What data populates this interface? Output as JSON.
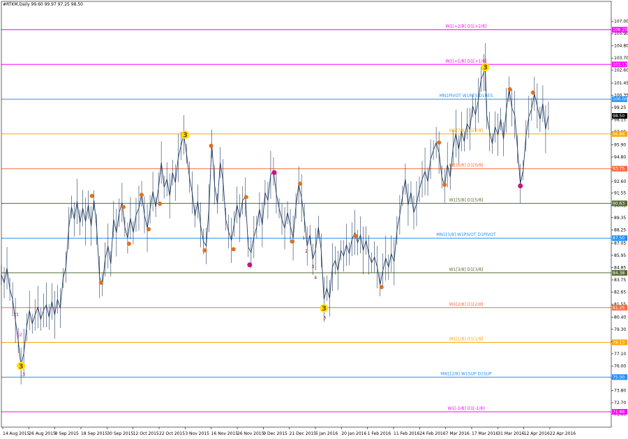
{
  "header": {
    "text": "#RTKM,Daily  99.60 99.97 97.25 98.50"
  },
  "chart_data": {
    "type": "line",
    "symbol": "#RTKM",
    "timeframe": "Daily",
    "ohlc": {
      "open": 99.6,
      "high": 99.97,
      "low": 97.25,
      "close": 98.5
    },
    "current_price_label": "98.50",
    "ylim": [
      70.5,
      108.8
    ],
    "y_ticks": [
      "107.00",
      "105.90",
      "104.80",
      "103.70",
      "102.60",
      "101.45",
      "100.35",
      "99.25",
      "98.15",
      "97.05",
      "95.90",
      "94.80",
      "93.70",
      "92.60",
      "91.55",
      "90.45",
      "89.35",
      "88.25",
      "87.05",
      "85.95",
      "84.85",
      "83.75",
      "82.65",
      "81.55",
      "80.40",
      "79.30",
      "78.20",
      "77.10",
      "76.00",
      "74.90",
      "73.80",
      "72.70",
      "71.65"
    ],
    "x_ticks": [
      "14 Aug 2015",
      "26 Aug 2015",
      "8 Sep 2015",
      "18 Sep 2015",
      "30 Sep 2015",
      "12 Oct 2015",
      "22 Oct 2015",
      "3 Nov 2015",
      "16 Nov 2015",
      "26 Nov 2015",
      "9 Dec 2015",
      "21 Dec 2015",
      "5 Jan 2016",
      "20 Jan 2016",
      "1 Feb 2016",
      "11 Feb 2016",
      "24 Feb 2016",
      "7 Mar 2016",
      "17 Mar 2016",
      "31 Mar 2016",
      "12 Apr 2016",
      "22 Apr 2016"
    ],
    "levels": [
      {
        "label": "W1[+2/8] D1[+2/8]",
        "value": 106.25,
        "tag": "106.25",
        "color": "#ff00ff"
      },
      {
        "label": "W1[+1/8] D1[+1/8]",
        "value": 103.13,
        "tag": "103.13",
        "color": "#ff00ff"
      },
      {
        "label": "MN1PIVOT W1RES D1RES",
        "value": 100.0,
        "tag": "100.00",
        "color": "#1e90ff"
      },
      {
        "label": "W1[7/8] D1[7/8]",
        "value": 96.88,
        "tag": "96.88",
        "color": "#ffa500"
      },
      {
        "label": "W1[6/8] D1[6/8]",
        "value": 93.75,
        "tag": "93.75",
        "color": "#ff6a3a"
      },
      {
        "label": "W1[5/8] D1[5/8]",
        "value": 90.63,
        "tag": "90.63",
        "color": "#556b2f"
      },
      {
        "label": "MN1[3/8] W1PIVOT D1PIVOT",
        "value": 87.5,
        "tag": "87.50",
        "color": "#1e90ff"
      },
      {
        "label": "W1[3/8] D1[3/8]",
        "value": 84.38,
        "tag": "84.38",
        "color": "#556b2f"
      },
      {
        "label": "W1[2/8] D1[2/8]",
        "value": 81.25,
        "tag": "81.25",
        "color": "#ff6a3a"
      },
      {
        "label": "W1[1/8] D1[1/8]",
        "value": 78.13,
        "tag": "78.13",
        "color": "#ffa500"
      },
      {
        "label": "MN1[2/8] W1SUP D1SUP",
        "value": 75.0,
        "tag": "75.00",
        "color": "#1e90ff"
      },
      {
        "label": "W1[-1/8] D1[-1/8]",
        "value": 71.88,
        "tag": "71.88",
        "color": "#ff00ff"
      }
    ],
    "series": [
      {
        "name": "#RTKM",
        "values": [
          [
            0,
            84.2
          ],
          [
            4,
            83.5
          ],
          [
            8,
            84.8
          ],
          [
            12,
            82.9
          ],
          [
            16,
            82.0
          ],
          [
            20,
            80.1
          ],
          [
            24,
            78.3
          ],
          [
            28,
            76.0
          ],
          [
            32,
            77.2
          ],
          [
            36,
            79.5
          ],
          [
            40,
            81.0
          ],
          [
            44,
            79.8
          ],
          [
            48,
            80.6
          ],
          [
            52,
            81.3
          ],
          [
            56,
            80.2
          ],
          [
            60,
            81.0
          ],
          [
            64,
            81.5
          ],
          [
            68,
            80.4
          ],
          [
            72,
            81.8
          ],
          [
            76,
            80.6
          ],
          [
            80,
            82.0
          ],
          [
            84,
            81.2
          ],
          [
            88,
            83.9
          ],
          [
            92,
            84.9
          ],
          [
            96,
            88.4
          ],
          [
            100,
            90.3
          ],
          [
            104,
            89.2
          ],
          [
            108,
            90.8
          ],
          [
            112,
            88.9
          ],
          [
            116,
            90.2
          ],
          [
            120,
            89.0
          ],
          [
            124,
            90.5
          ],
          [
            128,
            88.6
          ],
          [
            132,
            90.9
          ],
          [
            136,
            88.3
          ],
          [
            140,
            84.0
          ],
          [
            144,
            83.3
          ],
          [
            148,
            85.6
          ],
          [
            152,
            86.8
          ],
          [
            156,
            85.2
          ],
          [
            160,
            89.2
          ],
          [
            164,
            88.0
          ],
          [
            168,
            89.8
          ],
          [
            172,
            90.7
          ],
          [
            176,
            88.5
          ],
          [
            180,
            87.5
          ],
          [
            184,
            89.3
          ],
          [
            188,
            88.0
          ],
          [
            192,
            89.6
          ],
          [
            196,
            90.2
          ],
          [
            200,
            91.5
          ],
          [
            204,
            89.6
          ],
          [
            208,
            88.4
          ],
          [
            212,
            90.1
          ],
          [
            216,
            91.7
          ],
          [
            220,
            90.3
          ],
          [
            224,
            92.0
          ],
          [
            228,
            94.3
          ],
          [
            232,
            92.1
          ],
          [
            236,
            92.8
          ],
          [
            240,
            91.3
          ],
          [
            244,
            93.4
          ],
          [
            248,
            92.5
          ],
          [
            252,
            94.7
          ],
          [
            256,
            95.8
          ],
          [
            260,
            96.8
          ],
          [
            264,
            95.1
          ],
          [
            268,
            93.0
          ],
          [
            272,
            91.6
          ],
          [
            276,
            89.5
          ],
          [
            280,
            90.8
          ],
          [
            284,
            88.7
          ],
          [
            288,
            87.2
          ],
          [
            292,
            86.8
          ],
          [
            296,
            90.2
          ],
          [
            300,
            96.0
          ],
          [
            304,
            92.3
          ],
          [
            308,
            90.6
          ],
          [
            312,
            94.3
          ],
          [
            316,
            92.7
          ],
          [
            320,
            89.2
          ],
          [
            324,
            88.1
          ],
          [
            328,
            87.3
          ],
          [
            332,
            88.8
          ],
          [
            336,
            90.5
          ],
          [
            340,
            89.3
          ],
          [
            344,
            90.9
          ],
          [
            348,
            91.2
          ],
          [
            352,
            86.7
          ],
          [
            356,
            86.2
          ],
          [
            360,
            87.6
          ],
          [
            364,
            88.5
          ],
          [
            368,
            90.1
          ],
          [
            372,
            88.7
          ],
          [
            376,
            91.6
          ],
          [
            380,
            90.9
          ],
          [
            384,
            93.2
          ],
          [
            388,
            93.5
          ],
          [
            392,
            91.5
          ],
          [
            396,
            90.2
          ],
          [
            400,
            89.2
          ],
          [
            404,
            88.4
          ],
          [
            408,
            89.8
          ],
          [
            412,
            88.6
          ],
          [
            416,
            87.5
          ],
          [
            420,
            90.4
          ],
          [
            424,
            92.3
          ],
          [
            428,
            91.1
          ],
          [
            432,
            89.3
          ],
          [
            436,
            86.8
          ],
          [
            440,
            87.8
          ],
          [
            444,
            85.6
          ],
          [
            448,
            86.5
          ],
          [
            452,
            88.5
          ],
          [
            456,
            86.4
          ],
          [
            460,
            82.0
          ],
          [
            464,
            83.0
          ],
          [
            468,
            82.1
          ],
          [
            472,
            84.9
          ],
          [
            476,
            85.5
          ],
          [
            480,
            84.6
          ],
          [
            484,
            86.4
          ],
          [
            488,
            85.9
          ],
          [
            492,
            86.9
          ],
          [
            496,
            86.1
          ],
          [
            500,
            87.4
          ],
          [
            504,
            88.0
          ],
          [
            508,
            87.1
          ],
          [
            512,
            87.8
          ],
          [
            516,
            86.4
          ],
          [
            520,
            87.3
          ],
          [
            524,
            86.0
          ],
          [
            528,
            85.3
          ],
          [
            532,
            85.8
          ],
          [
            536,
            84.9
          ],
          [
            540,
            83.3
          ],
          [
            544,
            84.6
          ],
          [
            548,
            85.7
          ],
          [
            552,
            84.9
          ],
          [
            556,
            86.1
          ],
          [
            560,
            85.4
          ],
          [
            564,
            88.2
          ],
          [
            568,
            89.6
          ],
          [
            572,
            91.3
          ],
          [
            576,
            92.8
          ],
          [
            580,
            90.5
          ],
          [
            584,
            91.6
          ],
          [
            588,
            89.8
          ],
          [
            592,
            90.6
          ],
          [
            596,
            91.9
          ],
          [
            600,
            92.8
          ],
          [
            604,
            93.5
          ],
          [
            608,
            92.6
          ],
          [
            612,
            94.6
          ],
          [
            616,
            95.4
          ],
          [
            620,
            96.1
          ],
          [
            624,
            95.2
          ],
          [
            628,
            93.0
          ],
          [
            632,
            92.2
          ],
          [
            636,
            94.1
          ],
          [
            640,
            93.0
          ],
          [
            644,
            95.6
          ],
          [
            648,
            96.9
          ],
          [
            652,
            95.5
          ],
          [
            656,
            97.1
          ],
          [
            660,
            96.2
          ],
          [
            664,
            97.8
          ],
          [
            668,
            97.3
          ],
          [
            672,
            99.4
          ],
          [
            676,
            98.6
          ],
          [
            680,
            99.9
          ],
          [
            684,
            101.8
          ],
          [
            688,
            102.4
          ],
          [
            690,
            102.9
          ],
          [
            692,
            98.6
          ],
          [
            696,
            97.1
          ],
          [
            700,
            96.0
          ],
          [
            704,
            97.5
          ],
          [
            708,
            96.8
          ],
          [
            712,
            98.2
          ],
          [
            716,
            96.4
          ],
          [
            720,
            99.0
          ],
          [
            724,
            100.9
          ],
          [
            728,
            99.2
          ],
          [
            732,
            98.6
          ],
          [
            736,
            95.5
          ],
          [
            740,
            92.4
          ],
          [
            744,
            93.6
          ],
          [
            748,
            96.7
          ],
          [
            752,
            98.4
          ],
          [
            756,
            99.1
          ],
          [
            760,
            100.5
          ],
          [
            764,
            99.4
          ],
          [
            768,
            98.2
          ],
          [
            772,
            99.6
          ],
          [
            776,
            97.3
          ],
          [
            780,
            98.5
          ]
        ]
      }
    ],
    "markers": [
      {
        "label": "3",
        "kind": "big-yellow",
        "x": 28,
        "y": 76.0
      },
      {
        "label": "3",
        "kind": "big-yellow",
        "x": 262,
        "y": 96.8
      },
      {
        "label": "3",
        "kind": "big-yellow",
        "x": 460,
        "y": 81.2
      },
      {
        "label": "3",
        "kind": "big-yellow",
        "x": 690,
        "y": 102.9
      },
      {
        "label": "",
        "kind": "orange",
        "x": 129,
        "y": 91.3
      },
      {
        "label": "",
        "kind": "orange",
        "x": 142,
        "y": 83.5
      },
      {
        "label": "",
        "kind": "orange",
        "x": 174,
        "y": 90.3
      },
      {
        "label": "",
        "kind": "orange",
        "x": 182,
        "y": 87.0
      },
      {
        "label": "",
        "kind": "orange",
        "x": 200,
        "y": 91.4
      },
      {
        "label": "",
        "kind": "orange",
        "x": 210,
        "y": 88.3
      },
      {
        "label": "",
        "kind": "orange",
        "x": 226,
        "y": 90.6
      },
      {
        "label": "",
        "kind": "orange",
        "x": 290,
        "y": 86.4
      },
      {
        "label": "",
        "kind": "orange",
        "x": 299,
        "y": 95.8
      },
      {
        "label": "",
        "kind": "orange",
        "x": 331,
        "y": 86.5
      },
      {
        "label": "",
        "kind": "orange",
        "x": 349,
        "y": 91.2
      },
      {
        "label": "",
        "kind": "orange",
        "x": 415,
        "y": 87.2
      },
      {
        "label": "",
        "kind": "orange",
        "x": 426,
        "y": 92.4
      },
      {
        "label": "",
        "kind": "orange",
        "x": 505,
        "y": 87.7
      },
      {
        "label": "",
        "kind": "orange",
        "x": 542,
        "y": 83.1
      },
      {
        "label": "",
        "kind": "orange",
        "x": 624,
        "y": 96.1
      },
      {
        "label": "",
        "kind": "orange",
        "x": 632,
        "y": 92.3
      },
      {
        "label": "",
        "kind": "orange",
        "x": 725,
        "y": 100.9
      },
      {
        "label": "",
        "kind": "orange",
        "x": 758,
        "y": 100.6
      },
      {
        "label": "",
        "kind": "magenta",
        "x": 354,
        "y": 85.1
      },
      {
        "label": "",
        "kind": "magenta",
        "x": 389,
        "y": 93.4
      },
      {
        "label": "",
        "kind": "magenta",
        "x": 740,
        "y": 92.2
      }
    ],
    "annotations": [
      {
        "text": "11",
        "x": 21,
        "y": 80.5,
        "color": "#8b0000"
      },
      {
        "text": "12",
        "x": 26,
        "y": 78.7,
        "color": "#ff00ff"
      },
      {
        "text": "13",
        "x": 30,
        "y": 75.1,
        "color": "#8a2be2"
      },
      {
        "text": "1",
        "x": 431,
        "y": 87.4,
        "color": "#8b0000"
      },
      {
        "text": "2",
        "x": 435,
        "y": 86.2,
        "color": "#8b0000"
      },
      {
        "text": "3",
        "x": 444,
        "y": 84.8,
        "color": "#8b0000"
      },
      {
        "text": "4",
        "x": 448,
        "y": 83.8,
        "color": "#8b0000"
      },
      {
        "text": "3",
        "x": 461,
        "y": 80.2,
        "color": "#8b0000"
      }
    ]
  }
}
